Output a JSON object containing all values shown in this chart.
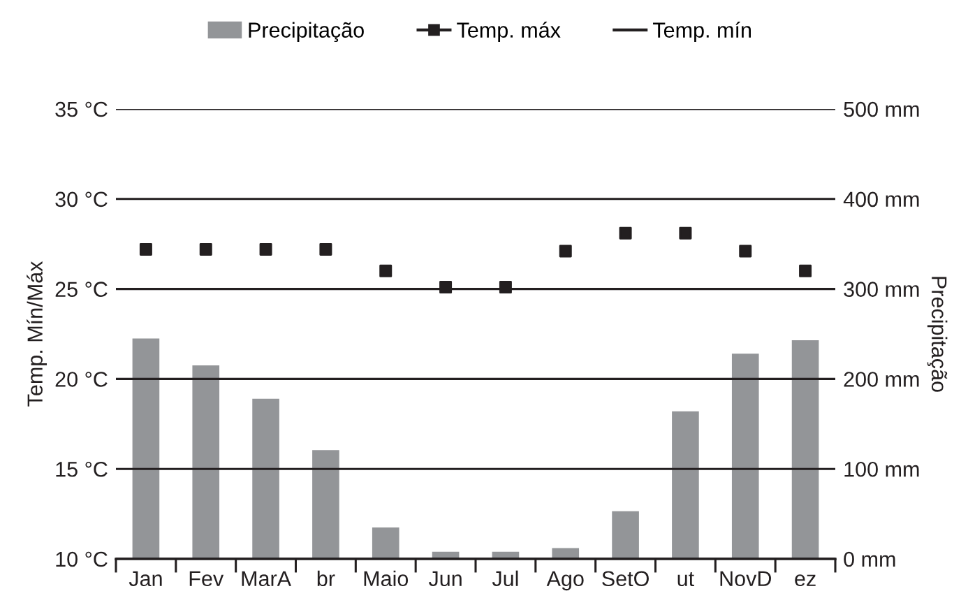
{
  "chart_data": {
    "type": "bar",
    "categories": [
      "Jan",
      "Fev",
      "MarA",
      "br",
      "Maio",
      "Jun",
      "Jul",
      "Ago",
      "SetO",
      "ut",
      "NovD",
      "ez"
    ],
    "ylabel": "Temp. Mín/Máx",
    "y2label": "Precipitação",
    "ylim": [
      10,
      35
    ],
    "yticks": [
      {
        "value": 10,
        "label": "10 °C"
      },
      {
        "value": 15,
        "label": "15 °C"
      },
      {
        "value": 20,
        "label": "20 °C"
      },
      {
        "value": 25,
        "label": "25 °C"
      },
      {
        "value": 30,
        "label": "30 °C"
      },
      {
        "value": 35,
        "label": "35 °C"
      }
    ],
    "y2lim": [
      0,
      500
    ],
    "y2ticks": [
      {
        "value": 0,
        "label": "0 mm"
      },
      {
        "value": 100,
        "label": "100 mm"
      },
      {
        "value": 200,
        "label": "200 mm"
      },
      {
        "value": 300,
        "label": "300 mm"
      },
      {
        "value": 400,
        "label": "400 mm"
      },
      {
        "value": 500,
        "label": "500 mm"
      }
    ],
    "grid": "y",
    "legend": "top",
    "series": [
      {
        "name": "Precipitação",
        "axis": "y2",
        "color": "#939598",
        "values": [
          245,
          215,
          178,
          121,
          35,
          8,
          8,
          12,
          53,
          164,
          228,
          243
        ]
      },
      {
        "name": "Temp. máx",
        "type": "scatter",
        "marker": "square",
        "color": "#231f20",
        "values": [
          27.2,
          27.2,
          27.2,
          27.2,
          26.0,
          25.1,
          25.1,
          27.1,
          28.1,
          28.1,
          27.1,
          26.0
        ]
      },
      {
        "name": "Temp. mín",
        "type": "line",
        "marker": "none",
        "color": "#231f20",
        "values": [
          null,
          null,
          null,
          null,
          null,
          null,
          null,
          null,
          null,
          null,
          null,
          null
        ]
      }
    ]
  }
}
